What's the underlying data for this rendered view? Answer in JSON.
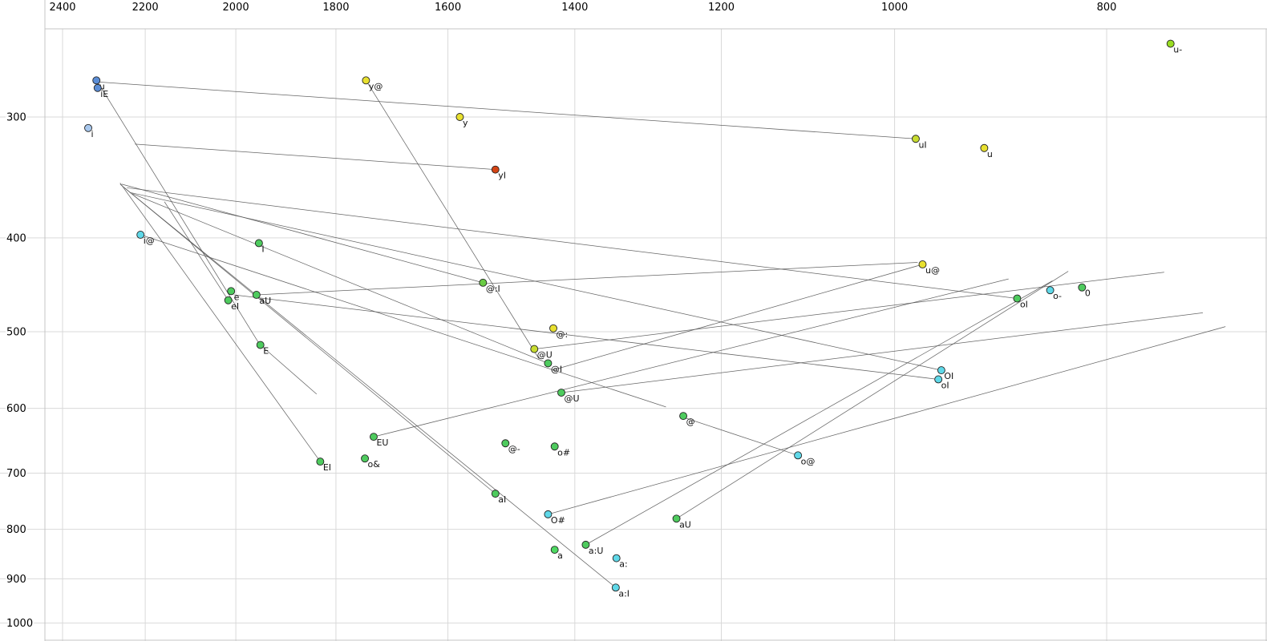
{
  "chart_data": {
    "type": "scatter",
    "title": "",
    "description": "Vowel formant plot (F2 horizontal reversed log scale in Hz, F1 vertical reversed log scale in Hz) with diphthong trajectory lines",
    "x_axis": {
      "unit": "Hz",
      "scale": "log",
      "reversed": true,
      "position": "top",
      "ticks": [
        2400,
        2200,
        2000,
        1800,
        1600,
        1400,
        1200,
        1000,
        800
      ]
    },
    "y_axis": {
      "unit": "Hz",
      "scale": "log",
      "reversed": true,
      "position": "left",
      "ticks": [
        300,
        400,
        500,
        600,
        700,
        800,
        900,
        1000
      ]
    },
    "grid": true,
    "legend": "none",
    "points": [
      {
        "label": "u-",
        "f2": 748,
        "f1": 252,
        "color": "#99dd22"
      },
      {
        "label": "u",
        "f2": 2316,
        "f1": 275,
        "color": "#5b8dd6"
      },
      {
        "label": "iE",
        "f2": 2313,
        "f1": 280,
        "color": "#5b8dd6"
      },
      {
        "label": "i",
        "f2": 2336,
        "f1": 308,
        "color": "#a8c8ee"
      },
      {
        "label": "y@",
        "f2": 1744,
        "f1": 275,
        "color": "#e8e030"
      },
      {
        "label": "y",
        "f2": 1580,
        "f1": 300,
        "color": "#e8e030"
      },
      {
        "label": "uI",
        "f2": 978,
        "f1": 316,
        "color": "#c8dc30"
      },
      {
        "label": "u",
        "f2": 910,
        "f1": 323,
        "color": "#e8e030"
      },
      {
        "label": "yI",
        "f2": 1522,
        "f1": 340,
        "color": "#d44414"
      },
      {
        "label": "i@",
        "f2": 2211,
        "f1": 397,
        "color": "#5fd8e8"
      },
      {
        "label": "I",
        "f2": 1952,
        "f1": 405,
        "color": "#4ecb5e",
        "label_color": "#aaaaaa"
      },
      {
        "label": "@:I",
        "f2": 1542,
        "f1": 445,
        "color": "#6acc44"
      },
      {
        "label": "u@",
        "f2": 971,
        "f1": 426,
        "color": "#e8e030"
      },
      {
        "label": "o-",
        "f2": 849,
        "f1": 453,
        "color": "#5fd8e8"
      },
      {
        "label": "0",
        "f2": 821,
        "f1": 450,
        "color": "#4ecb5e"
      },
      {
        "label": "oI",
        "f2": 879,
        "f1": 462,
        "color": "#4ecb5e"
      },
      {
        "label": "e",
        "f2": 2010,
        "f1": 454,
        "color": "#4ecb5e"
      },
      {
        "label": "eI",
        "f2": 2016,
        "f1": 464,
        "color": "#4ecb5e"
      },
      {
        "label": "aU",
        "f2": 1957,
        "f1": 458,
        "color": "#4ecb5e"
      },
      {
        "label": "E",
        "f2": 1949,
        "f1": 516,
        "color": "#4ecb5e"
      },
      {
        "label": "@:",
        "f2": 1432,
        "f1": 496,
        "color": "#e8e030"
      },
      {
        "label": "@U",
        "f2": 1461,
        "f1": 521,
        "color": "#c8dc30"
      },
      {
        "label": "@I",
        "f2": 1440,
        "f1": 539,
        "color": "#4ecb5e"
      },
      {
        "label": "@U",
        "f2": 1420,
        "f1": 578,
        "color": "#4ecb5e"
      },
      {
        "label": "OI",
        "f2": 952,
        "f1": 548,
        "color": "#5fd8e8"
      },
      {
        "label": "oI",
        "f2": 955,
        "f1": 560,
        "color": "#5fd8e8"
      },
      {
        "label": "@",
        "f2": 1249,
        "f1": 611,
        "color": "#4ecb5e"
      },
      {
        "label": "EU",
        "f2": 1730,
        "f1": 642,
        "color": "#4ecb5e"
      },
      {
        "label": "@-",
        "f2": 1506,
        "f1": 652,
        "color": "#4ecb5e"
      },
      {
        "label": "o#",
        "f2": 1430,
        "f1": 657,
        "color": "#4ecb5e"
      },
      {
        "label": "o@",
        "f2": 1107,
        "f1": 671,
        "color": "#5fd8e8"
      },
      {
        "label": "EI",
        "f2": 1830,
        "f1": 681,
        "color": "#4ecb5e"
      },
      {
        "label": "o&",
        "f2": 1746,
        "f1": 676,
        "color": "#4ecb5e"
      },
      {
        "label": "aI",
        "f2": 1522,
        "f1": 735,
        "color": "#4ecb5e"
      },
      {
        "label": "O#",
        "f2": 1440,
        "f1": 772,
        "color": "#5fd8e8"
      },
      {
        "label": "aU",
        "f2": 1258,
        "f1": 780,
        "color": "#4ecb5e"
      },
      {
        "label": "a",
        "f2": 1430,
        "f1": 840,
        "color": "#4ed862"
      },
      {
        "label": "a:U",
        "f2": 1384,
        "f1": 830,
        "color": "#4ecb5e"
      },
      {
        "label": "a:",
        "f2": 1340,
        "f1": 857,
        "color": "#5fd8e8"
      },
      {
        "label": "a:I",
        "f2": 1341,
        "f1": 919,
        "color": "#5fd8e8"
      }
    ],
    "lines": [
      [
        [
          978,
          316
        ],
        [
          2313,
          276
        ]
      ],
      [
        [
          1522,
          340
        ],
        [
          2224,
          320
        ]
      ],
      [
        [
          1744,
          275
        ],
        [
          1454,
          533
        ]
      ],
      [
        [
          2211,
          397
        ],
        [
          1272,
          598
        ]
      ],
      [
        [
          1542,
          445
        ],
        [
          2255,
          352
        ]
      ],
      [
        [
          971,
          426
        ],
        [
          1434,
          548
        ]
      ],
      [
        [
          879,
          462
        ],
        [
          2243,
          355
        ]
      ],
      [
        [
          952,
          548
        ],
        [
          2236,
          359
        ]
      ],
      [
        [
          955,
          560
        ],
        [
          2004,
          458
        ]
      ],
      [
        [
          2016,
          464
        ],
        [
          2156,
          367
        ]
      ],
      [
        [
          1957,
          458
        ],
        [
          976,
          424
        ]
      ],
      [
        [
          1949,
          516
        ],
        [
          1837,
          580
        ]
      ],
      [
        [
          1461,
          521
        ],
        [
          753,
          434
        ]
      ],
      [
        [
          1420,
          578
        ],
        [
          723,
          478
        ]
      ],
      [
        [
          1440,
          539
        ],
        [
          2230,
          360
        ]
      ],
      [
        [
          1730,
          642
        ],
        [
          887,
          441
        ]
      ],
      [
        [
          1830,
          681
        ],
        [
          2259,
          351
        ]
      ],
      [
        [
          1522,
          735
        ],
        [
          2259,
          352
        ]
      ],
      [
        [
          1341,
          919
        ],
        [
          2249,
          355
        ]
      ],
      [
        [
          1258,
          780
        ],
        [
          833,
          433
        ]
      ],
      [
        [
          1384,
          830
        ],
        [
          847,
          443
        ]
      ],
      [
        [
          1107,
          671
        ],
        [
          1246,
          614
        ]
      ],
      [
        [
          2313,
          276
        ],
        [
          1953,
          513
        ]
      ],
      [
        [
          1440,
          772
        ],
        [
          706,
          494
        ]
      ]
    ],
    "colors": {
      "background": "#ffffff",
      "grid": "#d9d9d9",
      "frame": "#c4c4c4",
      "trajectory": "#555555",
      "point_outline": "#222222",
      "tick_text": "#000000"
    }
  }
}
